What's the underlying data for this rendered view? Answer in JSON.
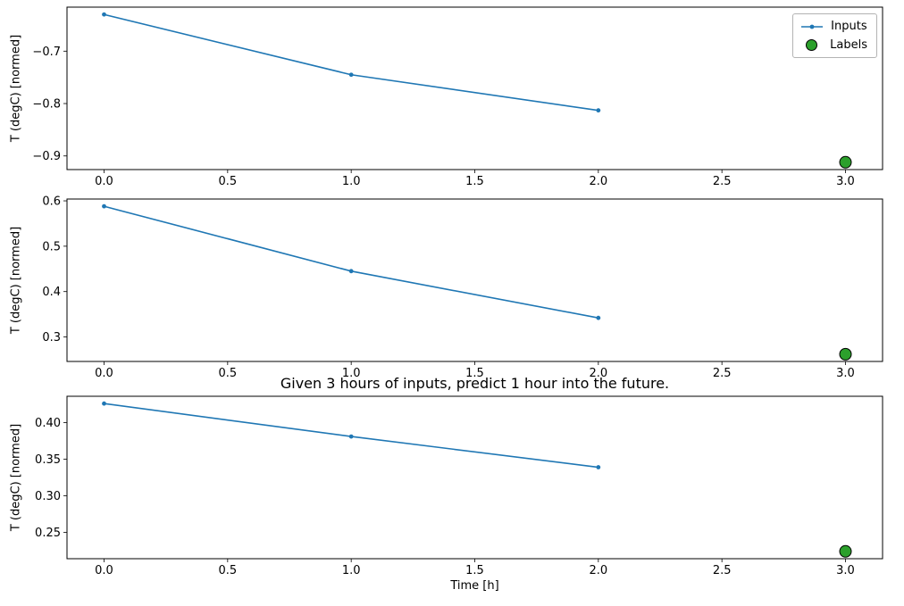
{
  "chart_data": {
    "type": "line",
    "figure_title": "Given 3 hours of inputs, predict 1 hour into the future.",
    "xlabel": "Time [h]",
    "inputs_color": "#1f77b4",
    "labels_color": "#2ca02c",
    "labels_edge_color": "#000000",
    "legend": [
      {
        "label": "Inputs"
      },
      {
        "label": "Labels"
      }
    ],
    "charts": [
      {
        "ylabel": "T (degC) [normed]",
        "xlim": [
          -0.15,
          3.15
        ],
        "ylim": [
          -0.926,
          -0.616
        ],
        "xticks": [
          0.0,
          0.5,
          1.0,
          1.5,
          2.0,
          2.5,
          3.0
        ],
        "xtick_labels": [
          "0.0",
          "0.5",
          "1.0",
          "1.5",
          "2.0",
          "2.5",
          "3.0"
        ],
        "yticks": [
          -0.7,
          -0.8,
          -0.9
        ],
        "ytick_labels": [
          "−0.7",
          "−0.8",
          "−0.9"
        ],
        "inputs": {
          "x": [
            0,
            1,
            2
          ],
          "y": [
            -0.63,
            -0.745,
            -0.813
          ]
        },
        "labels": {
          "x": [
            3
          ],
          "y": [
            -0.912
          ]
        }
      },
      {
        "ylabel": "T (degC) [normed]",
        "xlim": [
          -0.15,
          3.15
        ],
        "ylim": [
          0.246,
          0.604
        ],
        "xticks": [
          0.0,
          0.5,
          1.0,
          1.5,
          2.0,
          2.5,
          3.0
        ],
        "xtick_labels": [
          "0.0",
          "0.5",
          "1.0",
          "1.5",
          "2.0",
          "2.5",
          "3.0"
        ],
        "yticks": [
          0.3,
          0.4,
          0.5,
          0.6
        ],
        "ytick_labels": [
          "0.3",
          "0.4",
          "0.5",
          "0.6"
        ],
        "inputs": {
          "x": [
            0,
            1,
            2
          ],
          "y": [
            0.588,
            0.445,
            0.342
          ]
        },
        "labels": {
          "x": [
            3
          ],
          "y": [
            0.262
          ]
        }
      },
      {
        "title": "Given 3 hours of inputs, predict 1 hour into the future.",
        "ylabel": "T (degC) [normed]",
        "xlim": [
          -0.15,
          3.15
        ],
        "ylim": [
          0.214,
          0.436
        ],
        "xticks": [
          0.0,
          0.5,
          1.0,
          1.5,
          2.0,
          2.5,
          3.0
        ],
        "xtick_labels": [
          "0.0",
          "0.5",
          "1.0",
          "1.5",
          "2.0",
          "2.5",
          "3.0"
        ],
        "yticks": [
          0.25,
          0.3,
          0.35,
          0.4
        ],
        "ytick_labels": [
          "0.25",
          "0.30",
          "0.35",
          "0.40"
        ],
        "inputs": {
          "x": [
            0,
            1,
            2
          ],
          "y": [
            0.426,
            0.381,
            0.339
          ]
        },
        "labels": {
          "x": [
            3
          ],
          "y": [
            0.224
          ]
        }
      }
    ]
  }
}
